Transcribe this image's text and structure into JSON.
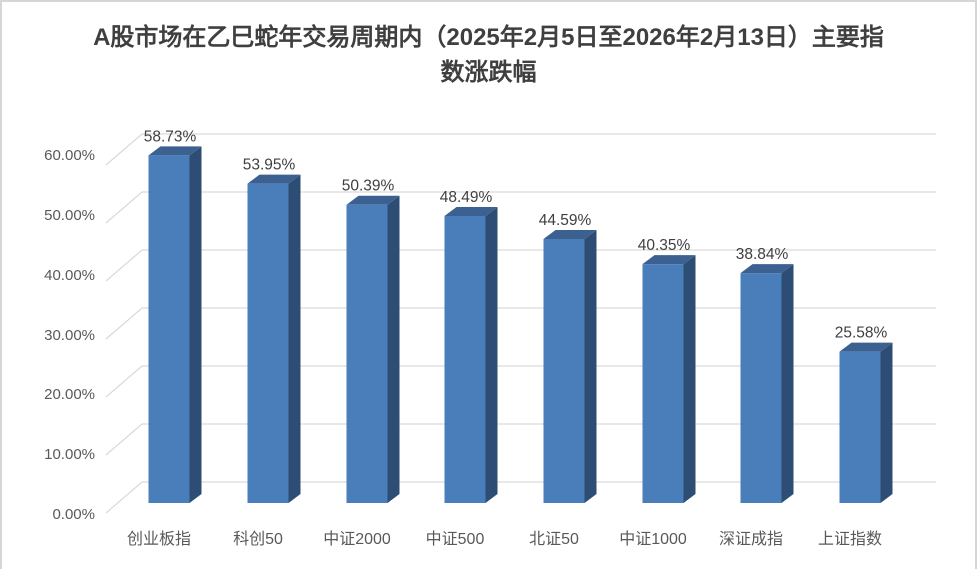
{
  "chart_data": {
    "type": "bar",
    "style": "3d-column",
    "title": "A股市场在乙巳蛇年交易周期内（2025年2月5日至2026年2月13日）主要指数涨跌幅",
    "categories": [
      "创业板指",
      "科创50",
      "中证2000",
      "中证500",
      "北证50",
      "中证1000",
      "深证成指",
      "上证指数"
    ],
    "values": [
      58.73,
      53.95,
      50.39,
      48.49,
      44.59,
      40.35,
      38.84,
      25.58
    ],
    "data_labels": [
      "58.73%",
      "53.95%",
      "50.39%",
      "48.49%",
      "44.59%",
      "40.35%",
      "38.84%",
      "25.58%"
    ],
    "xlabel": "",
    "ylabel": "",
    "y_axis": {
      "min": 0,
      "max": 60,
      "step": 10,
      "tick_labels": [
        "0.00%",
        "10.00%",
        "20.00%",
        "30.00%",
        "40.00%",
        "50.00%",
        "60.00%"
      ],
      "format": "percent"
    },
    "grid": true,
    "legend": "none",
    "colors": {
      "bar_front": "#4a7ebb",
      "bar_side": "#2e4d75",
      "bar_top": "#3c6191",
      "gridline": "#d9d9d9",
      "axis_text": "#595959",
      "data_label_text": "#3f3f3f",
      "title_text": "#3f3f3f",
      "chart_border": "#d6d6d6"
    }
  }
}
